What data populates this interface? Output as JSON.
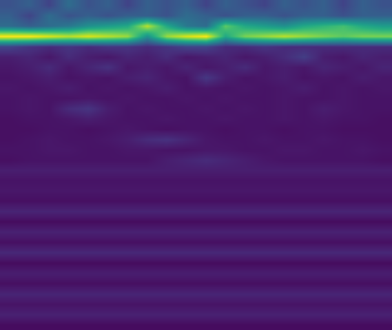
{
  "chart_data": {
    "type": "heatmap",
    "color": "Viridis",
    "tick_labels": false,
    "zlim": [
      0,
      1
    ],
    "z": [
      [
        0.25,
        0.3,
        0.2,
        0.35,
        0.25,
        0.3,
        0.2,
        0.3,
        0.25,
        0.3,
        0.2,
        0.3,
        0.25,
        0.2,
        0.3,
        0.25,
        0.3,
        0.2,
        0.3,
        0.25
      ],
      [
        0.3,
        0.2,
        0.35,
        0.25,
        0.3,
        0.25,
        0.3,
        0.3,
        0.25,
        0.35,
        0.3,
        0.25,
        0.3,
        0.3,
        0.25,
        0.3,
        0.3,
        0.25,
        0.3,
        0.3
      ],
      [
        0.35,
        0.3,
        0.35,
        0.4,
        0.5,
        0.55,
        0.6,
        0.9,
        0.6,
        0.4,
        0.35,
        0.75,
        0.6,
        0.55,
        0.5,
        0.6,
        0.65,
        0.7,
        0.6,
        0.55
      ],
      [
        1,
        1,
        0.95,
        0.9,
        0.95,
        0.9,
        0.85,
        0.5,
        0.85,
        0.95,
        1,
        0.6,
        0.8,
        0.85,
        0.9,
        0.85,
        0.8,
        0.75,
        0.8,
        0.8
      ],
      [
        0.2,
        0.15,
        0.12,
        0.15,
        0.12,
        0.15,
        0.15,
        0.12,
        0.15,
        0.2,
        0.2,
        0.12,
        0.12,
        0.15,
        0.12,
        0.12,
        0.12,
        0.12,
        0.12,
        0.12
      ],
      [
        0.08,
        0.1,
        0.06,
        0.12,
        0.08,
        0.06,
        0.1,
        0.08,
        0.12,
        0.06,
        0.08,
        0.1,
        0.06,
        0.08,
        0.12,
        0.18,
        0.08,
        0.06,
        0.1,
        0.08
      ],
      [
        0.06,
        0.08,
        0.12,
        0.06,
        0.1,
        0.14,
        0.06,
        0.08,
        0.06,
        0.1,
        0.06,
        0.08,
        0.12,
        0.06,
        0.08,
        0.06,
        0.1,
        0.08,
        0.06,
        0.1
      ],
      [
        0.05,
        0.06,
        0.08,
        0.05,
        0.06,
        0.05,
        0.08,
        0.1,
        0.06,
        0.05,
        0.16,
        0.08,
        0.05,
        0.06,
        0.08,
        0.05,
        0.06,
        0.05,
        0.08,
        0.06
      ],
      [
        0.06,
        0.05,
        0.06,
        0.08,
        0.05,
        0.06,
        0.05,
        0.06,
        0.08,
        0.05,
        0.06,
        0.05,
        0.06,
        0.05,
        0.06,
        0.08,
        0.05,
        0.06,
        0.05,
        0.06
      ],
      [
        0.05,
        0.06,
        0.05,
        0.05,
        0.06,
        0.05,
        0.06,
        0.05,
        0.05,
        0.06,
        0.05,
        0.06,
        0.05,
        0.05,
        0.06,
        0.05,
        0.05,
        0.06,
        0.05,
        0.05
      ],
      [
        0.05,
        0.06,
        0.05,
        0.12,
        0.15,
        0.08,
        0.05,
        0.06,
        0.05,
        0.05,
        0.06,
        0.05,
        0.06,
        0.05,
        0.06,
        0.05,
        0.08,
        0.06,
        0.05,
        0.05
      ],
      [
        0.04,
        0.05,
        0.05,
        0.06,
        0.08,
        0.06,
        0.05,
        0.05,
        0.06,
        0.05,
        0.05,
        0.06,
        0.05,
        0.05,
        0.06,
        0.05,
        0.06,
        0.05,
        0.05,
        0.04
      ],
      [
        0.04,
        0.04,
        0.05,
        0.05,
        0.04,
        0.05,
        0.06,
        0.05,
        0.04,
        0.05,
        0.05,
        0.04,
        0.05,
        0.05,
        0.04,
        0.05,
        0.05,
        0.04,
        0.04,
        0.04
      ],
      [
        0.04,
        0.05,
        0.06,
        0.05,
        0.05,
        0.06,
        0.08,
        0.12,
        0.14,
        0.1,
        0.06,
        0.05,
        0.05,
        0.06,
        0.05,
        0.05,
        0.06,
        0.05,
        0.05,
        0.04
      ],
      [
        0.05,
        0.05,
        0.06,
        0.06,
        0.05,
        0.05,
        0.06,
        0.06,
        0.05,
        0.05,
        0.06,
        0.06,
        0.05,
        0.05,
        0.06,
        0.06,
        0.05,
        0.05,
        0.06,
        0.05
      ],
      [
        0.04,
        0.05,
        0.05,
        0.05,
        0.05,
        0.05,
        0.05,
        0.05,
        0.08,
        0.1,
        0.12,
        0.1,
        0.08,
        0.06,
        0.05,
        0.05,
        0.05,
        0.05,
        0.05,
        0.04
      ],
      [
        0.08,
        0.08,
        0.08,
        0.08,
        0.08,
        0.08,
        0.08,
        0.08,
        0.08,
        0.08,
        0.08,
        0.08,
        0.08,
        0.08,
        0.08,
        0.08,
        0.08,
        0.08,
        0.08,
        0.08
      ],
      [
        0.05,
        0.05,
        0.05,
        0.05,
        0.05,
        0.05,
        0.05,
        0.05,
        0.05,
        0.05,
        0.05,
        0.05,
        0.05,
        0.05,
        0.05,
        0.05,
        0.05,
        0.05,
        0.05,
        0.05
      ],
      [
        0.06,
        0.06,
        0.06,
        0.06,
        0.06,
        0.06,
        0.06,
        0.06,
        0.06,
        0.06,
        0.06,
        0.06,
        0.06,
        0.06,
        0.06,
        0.06,
        0.06,
        0.06,
        0.06,
        0.06
      ],
      [
        0.04,
        0.04,
        0.04,
        0.04,
        0.04,
        0.04,
        0.04,
        0.04,
        0.04,
        0.04,
        0.04,
        0.04,
        0.04,
        0.04,
        0.04,
        0.04,
        0.04,
        0.04,
        0.04,
        0.04
      ],
      [
        0.1,
        0.1,
        0.1,
        0.1,
        0.1,
        0.1,
        0.1,
        0.1,
        0.1,
        0.1,
        0.1,
        0.1,
        0.1,
        0.1,
        0.1,
        0.1,
        0.1,
        0.1,
        0.1,
        0.1
      ],
      [
        0.03,
        0.03,
        0.03,
        0.03,
        0.03,
        0.03,
        0.03,
        0.03,
        0.03,
        0.03,
        0.03,
        0.03,
        0.03,
        0.03,
        0.03,
        0.03,
        0.03,
        0.03,
        0.03,
        0.03
      ],
      [
        0.09,
        0.09,
        0.09,
        0.09,
        0.09,
        0.09,
        0.09,
        0.09,
        0.09,
        0.09,
        0.09,
        0.09,
        0.09,
        0.09,
        0.09,
        0.09,
        0.09,
        0.09,
        0.09,
        0.09
      ],
      [
        0.04,
        0.04,
        0.04,
        0.04,
        0.04,
        0.04,
        0.04,
        0.04,
        0.04,
        0.04,
        0.04,
        0.04,
        0.04,
        0.04,
        0.04,
        0.04,
        0.04,
        0.04,
        0.04,
        0.04
      ],
      [
        0.11,
        0.11,
        0.11,
        0.11,
        0.11,
        0.11,
        0.11,
        0.11,
        0.11,
        0.11,
        0.11,
        0.11,
        0.11,
        0.11,
        0.11,
        0.11,
        0.11,
        0.11,
        0.11,
        0.11
      ],
      [
        0.03,
        0.03,
        0.03,
        0.03,
        0.03,
        0.03,
        0.03,
        0.03,
        0.03,
        0.03,
        0.03,
        0.03,
        0.03,
        0.03,
        0.03,
        0.03,
        0.03,
        0.03,
        0.03,
        0.03
      ],
      [
        0.08,
        0.08,
        0.08,
        0.08,
        0.08,
        0.08,
        0.08,
        0.08,
        0.08,
        0.08,
        0.08,
        0.08,
        0.08,
        0.08,
        0.08,
        0.08,
        0.08,
        0.08,
        0.08,
        0.08
      ],
      [
        0.04,
        0.04,
        0.04,
        0.04,
        0.04,
        0.04,
        0.04,
        0.04,
        0.04,
        0.04,
        0.04,
        0.04,
        0.04,
        0.04,
        0.04,
        0.04,
        0.04,
        0.04,
        0.04,
        0.04
      ],
      [
        0.1,
        0.1,
        0.1,
        0.1,
        0.1,
        0.1,
        0.1,
        0.1,
        0.1,
        0.1,
        0.1,
        0.1,
        0.1,
        0.1,
        0.1,
        0.1,
        0.1,
        0.1,
        0.1,
        0.1
      ],
      [
        0.05,
        0.05,
        0.05,
        0.05,
        0.05,
        0.05,
        0.05,
        0.05,
        0.05,
        0.05,
        0.05,
        0.05,
        0.05,
        0.05,
        0.05,
        0.05,
        0.05,
        0.05,
        0.05,
        0.05
      ],
      [
        0.09,
        0.09,
        0.09,
        0.09,
        0.09,
        0.09,
        0.09,
        0.09,
        0.09,
        0.09,
        0.09,
        0.09,
        0.09,
        0.09,
        0.09,
        0.09,
        0.09,
        0.09,
        0.09,
        0.09
      ],
      [
        0.03,
        0.03,
        0.03,
        0.03,
        0.03,
        0.03,
        0.03,
        0.03,
        0.03,
        0.03,
        0.03,
        0.03,
        0.03,
        0.03,
        0.03,
        0.03,
        0.03,
        0.03,
        0.03,
        0.03
      ]
    ]
  }
}
